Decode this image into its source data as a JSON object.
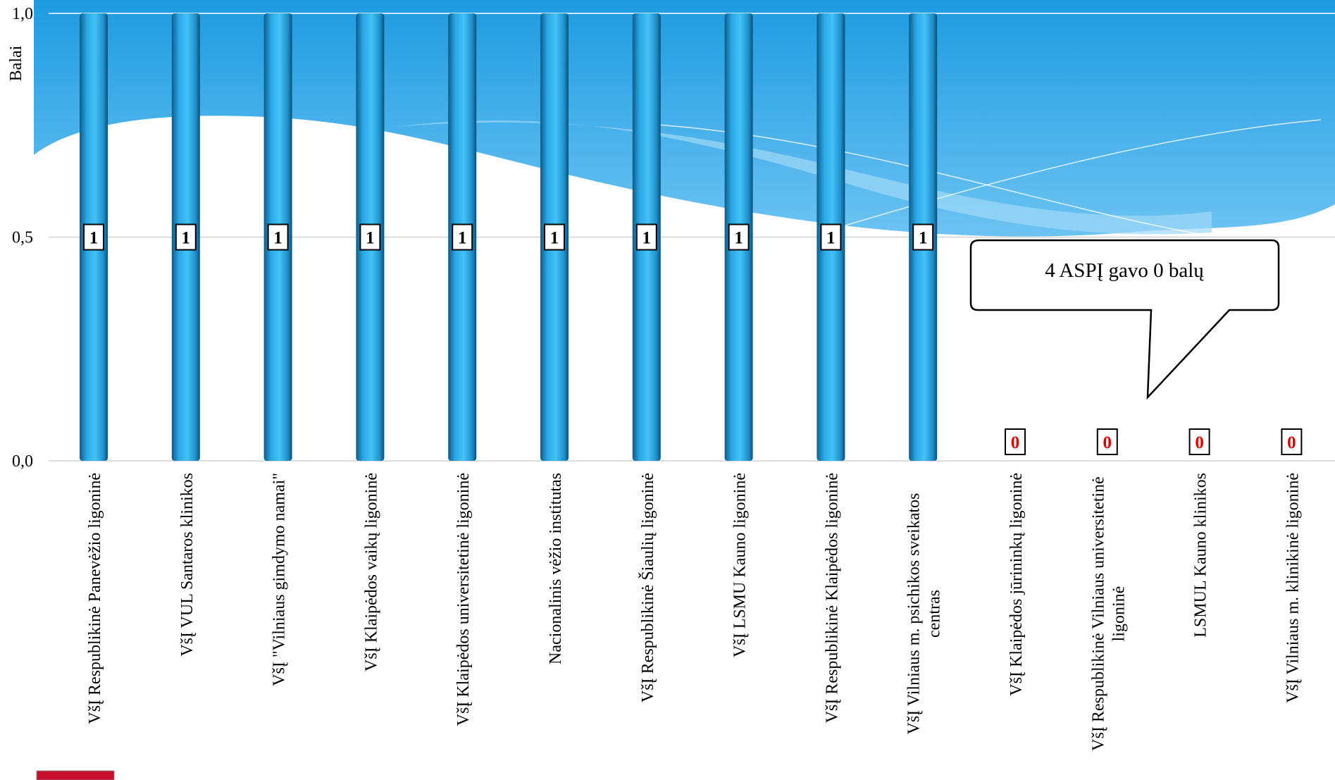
{
  "chart_data": {
    "type": "bar",
    "y_label": "Balai",
    "annotation": "4 ASPĮ gavo 0 balų",
    "categories": [
      "VšĮ Respublikinė Panevėžio ligoninė",
      "VšĮ VUL Santaros klinikos",
      "VšĮ \"Vilniaus gimdymo namai\"",
      "VšĮ Klaipėdos vaikų ligoninė",
      "VšĮ Klaipėdos universitetinė ligoninė",
      "Nacionalinis vėžio institutas",
      "VšĮ Respublikinė Šiaulių ligoninė",
      "VšĮ LSMU Kauno ligoninė",
      "VšĮ Respublikinė Klaipėdos ligoninė",
      "VšĮ Vilniaus m. psichikos sveikatos centras",
      "VšĮ Klaipėdos jūrininkų ligoninė",
      "VšĮ Respublikinė Vilniaus universitetinė ligoninė",
      "LSMUL Kauno klinikos",
      "VšĮ Vilniaus m. klinikinė ligoninė"
    ],
    "values": [
      1,
      1,
      1,
      1,
      1,
      1,
      1,
      1,
      1,
      1,
      0,
      0,
      0,
      0
    ],
    "color": "#29abe2",
    "ylim": [
      0,
      1
    ],
    "yticks": [
      {
        "value": 0,
        "label": "0,0"
      },
      {
        "value": 0.5,
        "label": "0,5"
      },
      {
        "value": 1,
        "label": "1,0"
      }
    ],
    "grid": true
  }
}
